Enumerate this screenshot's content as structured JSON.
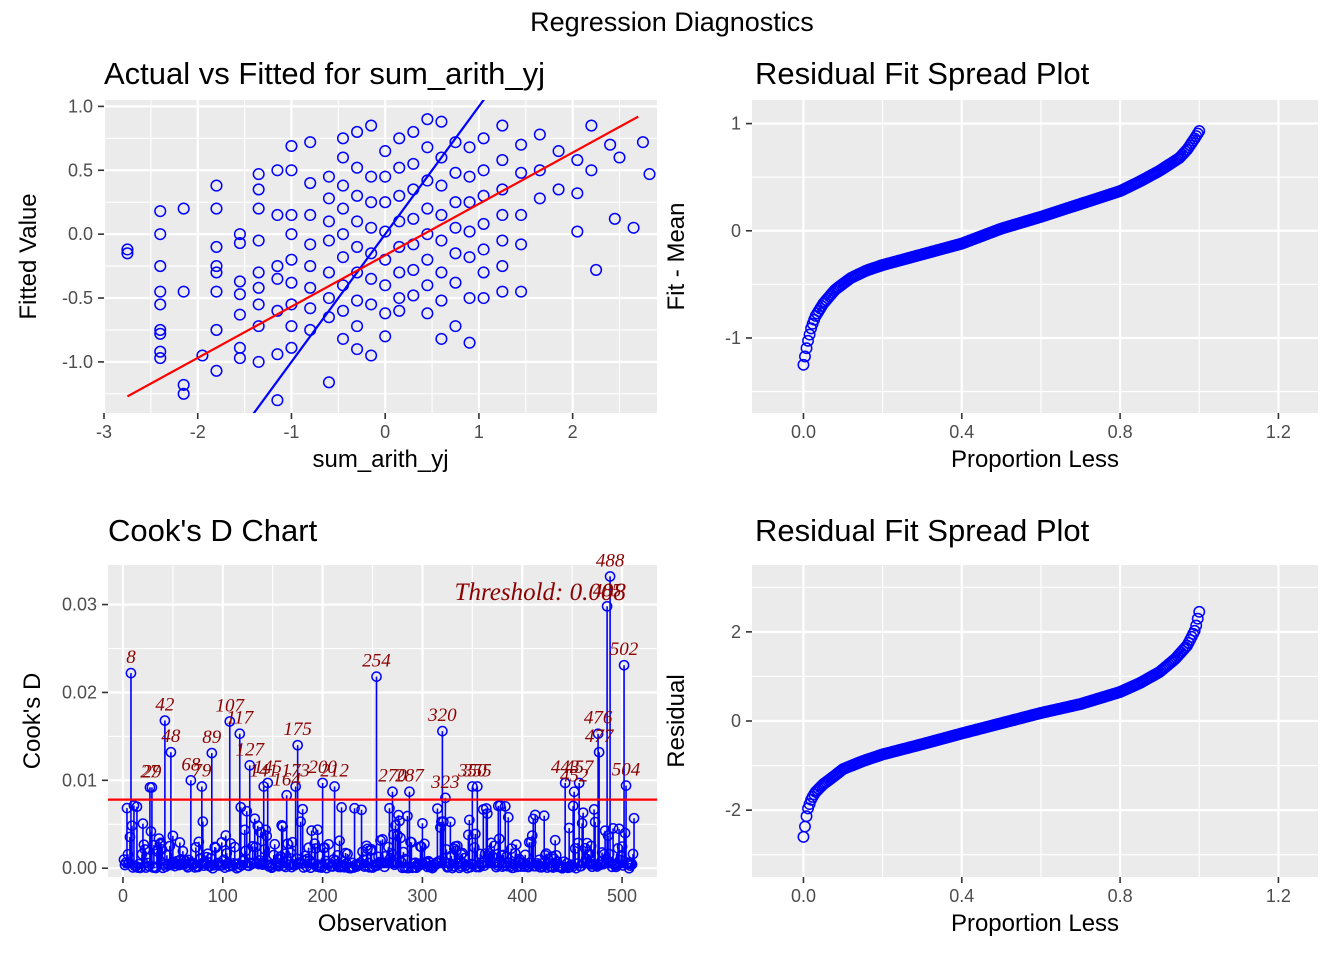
{
  "page": {
    "title": "Regression Diagnostics"
  },
  "colors": {
    "panel_bg": "#EBEBEB",
    "grid": "#FFFFFF",
    "points": "#0000FF",
    "fit_line": "#FF0000",
    "cooks_label": "#8B0000"
  },
  "chart_data": [
    {
      "id": "actual_vs_fitted",
      "type": "scatter",
      "title": "Actual vs Fitted for sum_arith_yj",
      "xlabel": "sum_arith_yj",
      "ylabel": "Fitted Value",
      "xlim": [
        -3.0,
        2.9
      ],
      "ylim": [
        -1.4,
        1.05
      ],
      "x_ticks": [
        -3,
        -2,
        -1,
        0,
        1,
        2
      ],
      "x_tick_labels": [
        "-3",
        "-2",
        "-1",
        "0",
        "1",
        "2"
      ],
      "y_ticks": [
        -1.0,
        -0.5,
        0.0,
        0.5,
        1.0
      ],
      "y_tick_labels": [
        "-1.0",
        "-0.5",
        "0.0",
        "0.5",
        "1.0"
      ],
      "grid": true,
      "identity_line": {
        "intercept": 0,
        "slope": 1,
        "color": "#0000FF"
      },
      "regression_line": {
        "x": [
          -2.75,
          2.7
        ],
        "y": [
          -1.27,
          0.92
        ],
        "color": "#FF0000"
      },
      "points": [
        [
          -2.75,
          -0.12
        ],
        [
          -2.75,
          -0.15
        ],
        [
          -2.4,
          0.18
        ],
        [
          -2.4,
          0.0
        ],
        [
          -2.4,
          -0.25
        ],
        [
          -2.4,
          -0.45
        ],
        [
          -2.4,
          -0.55
        ],
        [
          -2.4,
          -0.75
        ],
        [
          -2.4,
          -0.78
        ],
        [
          -2.4,
          -0.92
        ],
        [
          -2.4,
          -0.97
        ],
        [
          -2.15,
          0.2
        ],
        [
          -2.15,
          -0.45
        ],
        [
          -2.15,
          -1.18
        ],
        [
          -2.15,
          -1.25
        ],
        [
          -1.95,
          -0.95
        ],
        [
          -1.8,
          0.38
        ],
        [
          -1.8,
          0.2
        ],
        [
          -1.8,
          -0.1
        ],
        [
          -1.8,
          -0.25
        ],
        [
          -1.8,
          -0.3
        ],
        [
          -1.8,
          -0.45
        ],
        [
          -1.8,
          -0.75
        ],
        [
          -1.8,
          -1.07
        ],
        [
          -1.55,
          0.0
        ],
        [
          -1.55,
          -0.07
        ],
        [
          -1.55,
          -0.37
        ],
        [
          -1.55,
          -0.47
        ],
        [
          -1.55,
          -0.63
        ],
        [
          -1.55,
          -0.89
        ],
        [
          -1.55,
          -0.97
        ],
        [
          -1.35,
          0.47
        ],
        [
          -1.35,
          0.35
        ],
        [
          -1.35,
          0.2
        ],
        [
          -1.35,
          -0.05
        ],
        [
          -1.35,
          -0.3
        ],
        [
          -1.35,
          -0.42
        ],
        [
          -1.35,
          -0.55
        ],
        [
          -1.35,
          -0.72
        ],
        [
          -1.35,
          -1.0
        ],
        [
          -1.15,
          0.5
        ],
        [
          -1.15,
          0.15
        ],
        [
          -1.15,
          -0.25
        ],
        [
          -1.15,
          -0.35
        ],
        [
          -1.15,
          -0.6
        ],
        [
          -1.15,
          -0.94
        ],
        [
          -1.15,
          -1.3
        ],
        [
          -1.0,
          0.69
        ],
        [
          -1.0,
          0.5
        ],
        [
          -1.0,
          0.15
        ],
        [
          -1.0,
          0.0
        ],
        [
          -1.0,
          -0.2
        ],
        [
          -1.0,
          -0.38
        ],
        [
          -1.0,
          -0.55
        ],
        [
          -1.0,
          -0.72
        ],
        [
          -1.0,
          -0.89
        ],
        [
          -0.8,
          0.72
        ],
        [
          -0.8,
          0.4
        ],
        [
          -0.8,
          0.15
        ],
        [
          -0.8,
          -0.08
        ],
        [
          -0.8,
          -0.25
        ],
        [
          -0.8,
          -0.42
        ],
        [
          -0.8,
          -0.58
        ],
        [
          -0.8,
          -0.75
        ],
        [
          -0.6,
          0.45
        ],
        [
          -0.6,
          0.28
        ],
        [
          -0.6,
          0.1
        ],
        [
          -0.6,
          -0.05
        ],
        [
          -0.6,
          -0.3
        ],
        [
          -0.6,
          -0.5
        ],
        [
          -0.6,
          -0.65
        ],
        [
          -0.6,
          -1.16
        ],
        [
          -0.45,
          0.75
        ],
        [
          -0.45,
          0.6
        ],
        [
          -0.45,
          0.38
        ],
        [
          -0.45,
          0.2
        ],
        [
          -0.45,
          0.0
        ],
        [
          -0.45,
          -0.18
        ],
        [
          -0.45,
          -0.4
        ],
        [
          -0.45,
          -0.6
        ],
        [
          -0.45,
          -0.82
        ],
        [
          -0.3,
          0.8
        ],
        [
          -0.3,
          0.52
        ],
        [
          -0.3,
          0.3
        ],
        [
          -0.3,
          0.1
        ],
        [
          -0.3,
          -0.1
        ],
        [
          -0.3,
          -0.3
        ],
        [
          -0.3,
          -0.52
        ],
        [
          -0.3,
          -0.72
        ],
        [
          -0.3,
          -0.9
        ],
        [
          -0.15,
          0.85
        ],
        [
          -0.15,
          0.45
        ],
        [
          -0.15,
          0.25
        ],
        [
          -0.15,
          0.05
        ],
        [
          -0.15,
          -0.15
        ],
        [
          -0.15,
          -0.35
        ],
        [
          -0.15,
          -0.55
        ],
        [
          -0.15,
          -0.95
        ],
        [
          0.0,
          0.65
        ],
        [
          0.0,
          0.45
        ],
        [
          0.0,
          0.25
        ],
        [
          0.0,
          0.02
        ],
        [
          0.0,
          -0.2
        ],
        [
          0.0,
          -0.4
        ],
        [
          0.0,
          -0.62
        ],
        [
          0.0,
          -0.8
        ],
        [
          0.15,
          0.75
        ],
        [
          0.15,
          0.52
        ],
        [
          0.15,
          0.3
        ],
        [
          0.15,
          0.1
        ],
        [
          0.15,
          -0.1
        ],
        [
          0.15,
          -0.3
        ],
        [
          0.15,
          -0.5
        ],
        [
          0.15,
          -0.6
        ],
        [
          0.3,
          0.8
        ],
        [
          0.3,
          0.55
        ],
        [
          0.3,
          0.35
        ],
        [
          0.3,
          0.12
        ],
        [
          0.3,
          -0.08
        ],
        [
          0.3,
          -0.28
        ],
        [
          0.3,
          -0.48
        ],
        [
          0.45,
          0.9
        ],
        [
          0.45,
          0.68
        ],
        [
          0.45,
          0.42
        ],
        [
          0.45,
          0.2
        ],
        [
          0.45,
          0.0
        ],
        [
          0.45,
          -0.2
        ],
        [
          0.45,
          -0.4
        ],
        [
          0.45,
          -0.62
        ],
        [
          0.6,
          0.88
        ],
        [
          0.6,
          0.6
        ],
        [
          0.6,
          0.38
        ],
        [
          0.6,
          0.15
        ],
        [
          0.6,
          -0.05
        ],
        [
          0.6,
          -0.3
        ],
        [
          0.6,
          -0.52
        ],
        [
          0.6,
          -0.82
        ],
        [
          0.75,
          0.72
        ],
        [
          0.75,
          0.48
        ],
        [
          0.75,
          0.25
        ],
        [
          0.75,
          0.05
        ],
        [
          0.75,
          -0.15
        ],
        [
          0.75,
          -0.38
        ],
        [
          0.75,
          -0.72
        ],
        [
          0.9,
          0.68
        ],
        [
          0.9,
          0.45
        ],
        [
          0.9,
          0.25
        ],
        [
          0.9,
          0.02
        ],
        [
          0.9,
          -0.18
        ],
        [
          0.9,
          -0.5
        ],
        [
          0.9,
          -0.85
        ],
        [
          1.05,
          0.75
        ],
        [
          1.05,
          0.5
        ],
        [
          1.05,
          0.3
        ],
        [
          1.05,
          0.08
        ],
        [
          1.05,
          -0.12
        ],
        [
          1.05,
          -0.3
        ],
        [
          1.05,
          -0.5
        ],
        [
          1.25,
          0.85
        ],
        [
          1.25,
          0.58
        ],
        [
          1.25,
          0.35
        ],
        [
          1.25,
          0.15
        ],
        [
          1.25,
          -0.05
        ],
        [
          1.25,
          -0.25
        ],
        [
          1.25,
          -0.45
        ],
        [
          1.45,
          0.7
        ],
        [
          1.45,
          0.48
        ],
        [
          1.45,
          0.15
        ],
        [
          1.45,
          -0.08
        ],
        [
          1.45,
          -0.45
        ],
        [
          1.65,
          0.78
        ],
        [
          1.65,
          0.5
        ],
        [
          1.65,
          0.28
        ],
        [
          1.85,
          0.65
        ],
        [
          1.85,
          0.35
        ],
        [
          2.05,
          0.58
        ],
        [
          2.05,
          0.32
        ],
        [
          2.05,
          0.02
        ],
        [
          2.2,
          0.85
        ],
        [
          2.2,
          0.5
        ],
        [
          2.25,
          -0.28
        ],
        [
          2.4,
          0.7
        ],
        [
          2.45,
          0.12
        ],
        [
          2.5,
          0.6
        ],
        [
          2.65,
          0.05
        ],
        [
          2.75,
          0.72
        ],
        [
          2.82,
          0.47
        ]
      ]
    },
    {
      "id": "residual_fit_spread_top",
      "type": "scatter",
      "title": "Residual Fit Spread Plot",
      "xlabel": "Proportion Less",
      "ylabel": "Fit - Mean",
      "xlim": [
        -0.13,
        1.3
      ],
      "ylim": [
        -1.7,
        1.22
      ],
      "x_ticks": [
        0.0,
        0.4,
        0.8,
        1.2
      ],
      "x_tick_labels": [
        "0.0",
        "0.4",
        "0.8",
        "1.2"
      ],
      "y_ticks": [
        -1,
        0,
        1
      ],
      "y_tick_labels": [
        "-1",
        "0",
        "1"
      ],
      "grid": true,
      "curve": {
        "p": [
          0.0,
          0.01,
          0.02,
          0.03,
          0.05,
          0.08,
          0.12,
          0.16,
          0.2,
          0.25,
          0.3,
          0.4,
          0.5,
          0.6,
          0.7,
          0.8,
          0.85,
          0.9,
          0.95,
          0.97,
          0.99,
          1.0
        ],
        "v": [
          -1.25,
          -1.05,
          -0.9,
          -0.8,
          -0.68,
          -0.55,
          -0.44,
          -0.37,
          -0.32,
          -0.27,
          -0.22,
          -0.12,
          0.02,
          0.13,
          0.25,
          0.37,
          0.46,
          0.56,
          0.68,
          0.76,
          0.87,
          0.93
        ]
      }
    },
    {
      "id": "cooks_d",
      "type": "bar",
      "title": "Cook's D Chart",
      "xlabel": "Observation",
      "ylabel": "Cook's D",
      "xlim": [
        -15,
        535
      ],
      "ylim": [
        -0.001,
        0.0345
      ],
      "x_ticks": [
        0,
        100,
        200,
        300,
        400,
        500
      ],
      "x_tick_labels": [
        "0",
        "100",
        "200",
        "300",
        "400",
        "500"
      ],
      "y_ticks": [
        0.0,
        0.01,
        0.02,
        0.03
      ],
      "y_tick_labels": [
        "0.00",
        "0.01",
        "0.02",
        "0.03"
      ],
      "grid": true,
      "threshold": 0.0078,
      "threshold_label": "Threshold: 0.008",
      "n_obs": 512,
      "labeled_observations": [
        {
          "obs": 8,
          "label": "8",
          "value": 0.0222
        },
        {
          "obs": 27,
          "label": "27",
          "value": 0.0092
        },
        {
          "obs": 29,
          "label": "29",
          "value": 0.0092
        },
        {
          "obs": 42,
          "label": "42",
          "value": 0.0168
        },
        {
          "obs": 48,
          "label": "48",
          "value": 0.0132
        },
        {
          "obs": 68,
          "label": "68",
          "value": 0.01
        },
        {
          "obs": 79,
          "label": "79",
          "value": 0.0093
        },
        {
          "obs": 89,
          "label": "89",
          "value": 0.0131
        },
        {
          "obs": 107,
          "label": "107",
          "value": 0.0167
        },
        {
          "obs": 117,
          "label": "117",
          "value": 0.0153
        },
        {
          "obs": 127,
          "label": "127",
          "value": 0.0117
        },
        {
          "obs": 141,
          "label": "141",
          "value": 0.0093
        },
        {
          "obs": 145,
          "label": "145",
          "value": 0.0097
        },
        {
          "obs": 164,
          "label": "164",
          "value": 0.0083
        },
        {
          "obs": 173,
          "label": "173",
          "value": 0.0093
        },
        {
          "obs": 175,
          "label": "175",
          "value": 0.014
        },
        {
          "obs": 200,
          "label": "200",
          "value": 0.0097
        },
        {
          "obs": 212,
          "label": "212",
          "value": 0.0093
        },
        {
          "obs": 254,
          "label": "254",
          "value": 0.0218
        },
        {
          "obs": 270,
          "label": "270",
          "value": 0.0087
        },
        {
          "obs": 287,
          "label": "287",
          "value": 0.0087
        },
        {
          "obs": 320,
          "label": "320",
          "value": 0.0156
        },
        {
          "obs": 323,
          "label": "323",
          "value": 0.008
        },
        {
          "obs": 350,
          "label": "350",
          "value": 0.0093
        },
        {
          "obs": 355,
          "label": "355",
          "value": 0.0093
        },
        {
          "obs": 443,
          "label": "443",
          "value": 0.0097
        },
        {
          "obs": 452,
          "label": "452",
          "value": 0.0087
        },
        {
          "obs": 457,
          "label": "457",
          "value": 0.0097
        },
        {
          "obs": 476,
          "label": "476",
          "value": 0.0153
        },
        {
          "obs": 477,
          "label": "477",
          "value": 0.0132
        },
        {
          "obs": 485,
          "label": "485",
          "value": 0.0298
        },
        {
          "obs": 488,
          "label": "488",
          "value": 0.0332
        },
        {
          "obs": 502,
          "label": "502",
          "value": 0.0231
        },
        {
          "obs": 504,
          "label": "504",
          "value": 0.0094
        }
      ]
    },
    {
      "id": "residual_fit_spread_bottom",
      "type": "scatter",
      "title": "Residual Fit Spread Plot",
      "xlabel": "Proportion Less",
      "ylabel": "Residual",
      "xlim": [
        -0.13,
        1.3
      ],
      "ylim": [
        -3.5,
        3.5
      ],
      "x_ticks": [
        0.0,
        0.4,
        0.8,
        1.2
      ],
      "x_tick_labels": [
        "0.0",
        "0.4",
        "0.8",
        "1.2"
      ],
      "y_ticks": [
        -2,
        0,
        2
      ],
      "y_tick_labels": [
        "-2",
        "0",
        "2"
      ],
      "grid": true,
      "curve": {
        "p": [
          0.0,
          0.005,
          0.01,
          0.02,
          0.03,
          0.05,
          0.08,
          0.1,
          0.15,
          0.2,
          0.3,
          0.4,
          0.5,
          0.6,
          0.7,
          0.8,
          0.85,
          0.9,
          0.94,
          0.97,
          0.99,
          1.0
        ],
        "v": [
          -2.6,
          -2.3,
          -2.0,
          -1.75,
          -1.6,
          -1.42,
          -1.22,
          -1.08,
          -0.9,
          -0.75,
          -0.52,
          -0.28,
          -0.05,
          0.18,
          0.38,
          0.65,
          0.85,
          1.1,
          1.4,
          1.7,
          2.05,
          2.45
        ]
      }
    }
  ]
}
